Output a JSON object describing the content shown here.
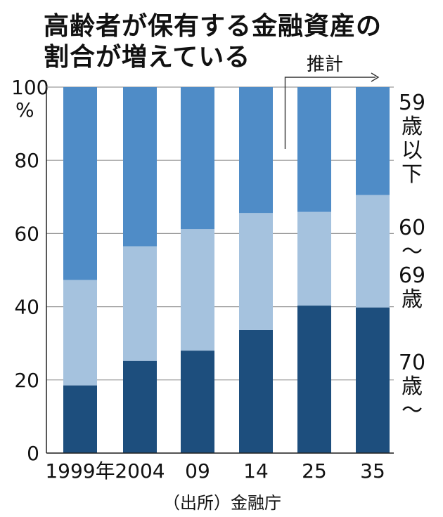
{
  "title_line1": "高齢者が保有する金融資産の",
  "title_line2": "割合が増えている",
  "unit_line1": "100",
  "unit_line2": "%",
  "estimate_label": "推計",
  "source": "（出所）金融庁",
  "colors": {
    "dark": "#1d4e7d",
    "light": "#a5c2de",
    "mid": "#4f8cc7"
  },
  "chart_data": {
    "type": "bar",
    "stacked": true,
    "categories": [
      "1999年",
      "2004",
      "09",
      "14",
      "25",
      "35"
    ],
    "series": [
      {
        "name": "70歳〜",
        "values": [
          18.5,
          25.2,
          28.0,
          33.6,
          40.3,
          39.8
        ]
      },
      {
        "name": "60〜69歳",
        "values": [
          28.8,
          31.3,
          33.2,
          32.0,
          25.6,
          30.7
        ]
      },
      {
        "name": "59歳以下",
        "values": [
          52.7,
          43.5,
          38.8,
          34.4,
          34.1,
          29.5
        ]
      }
    ],
    "legend_lines": [
      [
        "59",
        "歳",
        "以",
        "下"
      ],
      [
        "60",
        "〜",
        "69",
        "歳"
      ],
      [
        "70",
        "歳",
        "〜"
      ]
    ],
    "ylim": [
      0,
      100
    ],
    "yticks": [
      0,
      20,
      40,
      60,
      80,
      100
    ],
    "ytick_labels": [
      "0",
      "20",
      "40",
      "60",
      "80",
      ""
    ],
    "estimate_from_index": 4
  }
}
